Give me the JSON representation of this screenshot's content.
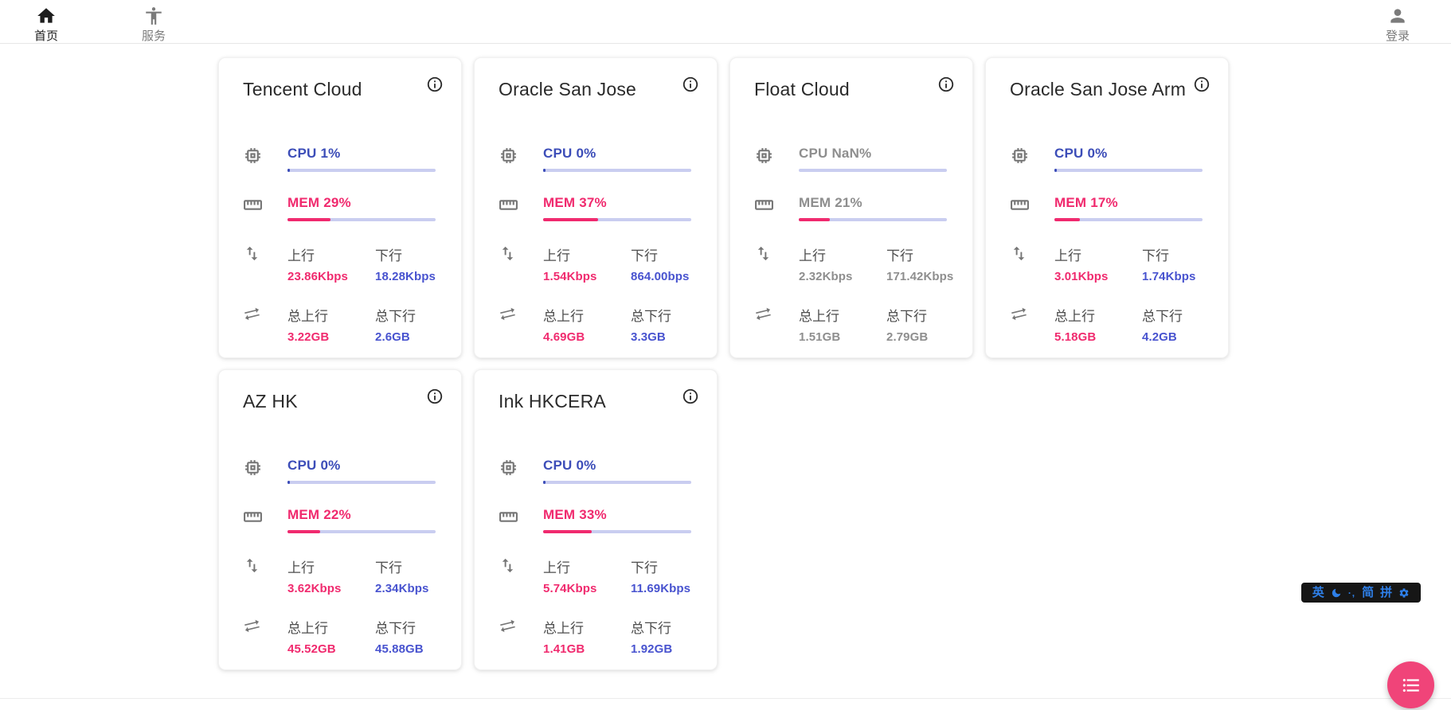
{
  "nav": {
    "home": {
      "label": "首页"
    },
    "services": {
      "label": "服务"
    },
    "login": {
      "label": "登录"
    }
  },
  "labels": {
    "cpu_prefix": "CPU",
    "mem_prefix": "MEM",
    "upload": "上行",
    "download": "下行",
    "total_upload": "总上行",
    "total_download": "总下行"
  },
  "servers": [
    {
      "name": "Tencent Cloud",
      "online": true,
      "cpu": "1%",
      "cpu_pct": 1,
      "mem": "29%",
      "mem_pct": 29,
      "upload": "23.86Kbps",
      "download": "18.28Kbps",
      "total_upload": "3.22GB",
      "total_download": "2.6GB"
    },
    {
      "name": "Oracle San Jose",
      "online": true,
      "cpu": "0%",
      "cpu_pct": 0,
      "mem": "37%",
      "mem_pct": 37,
      "upload": "1.54Kbps",
      "download": "864.00bps",
      "total_upload": "4.69GB",
      "total_download": "3.3GB"
    },
    {
      "name": "Float Cloud",
      "online": false,
      "cpu": "NaN%",
      "cpu_pct": null,
      "mem": "21%",
      "mem_pct": 21,
      "upload": "2.32Kbps",
      "download": "171.42Kbps",
      "total_upload": "1.51GB",
      "total_download": "2.79GB"
    },
    {
      "name": "Oracle San Jose Arm",
      "online": true,
      "cpu": "0%",
      "cpu_pct": 0,
      "mem": "17%",
      "mem_pct": 17,
      "upload": "3.01Kbps",
      "download": "1.74Kbps",
      "total_upload": "5.18GB",
      "total_download": "4.2GB"
    },
    {
      "name": "AZ HK",
      "online": true,
      "cpu": "0%",
      "cpu_pct": 0,
      "mem": "22%",
      "mem_pct": 22,
      "upload": "3.62Kbps",
      "download": "2.34Kbps",
      "total_upload": "45.52GB",
      "total_download": "45.88GB"
    },
    {
      "name": "Ink HKCERA",
      "online": true,
      "cpu": "0%",
      "cpu_pct": 0,
      "mem": "33%",
      "mem_pct": 33,
      "upload": "5.74Kbps",
      "download": "11.69Kbps",
      "total_upload": "1.41GB",
      "total_download": "1.92GB"
    }
  ],
  "ime_toolbar": {
    "lang": "英",
    "punct": "·,",
    "simplified": "简",
    "pinyin": "拼"
  },
  "colors": {
    "blue_label": "#3c4db8",
    "blue_value": "#4853cf",
    "pink": "#f02a6e",
    "track": "#c9cdf0",
    "fab": "#f04479",
    "title": "#2a2a2a",
    "label_gray": "#4d4d4d",
    "icon_gray": "#757575",
    "offline_gray": "#8e8e8e",
    "nav_active": "#1d1d1d",
    "nav_gray": "#7b7b7b",
    "divider": "#e6e6e6",
    "ime_bg": "#161616",
    "ime_blue": "#2e7fe8"
  }
}
